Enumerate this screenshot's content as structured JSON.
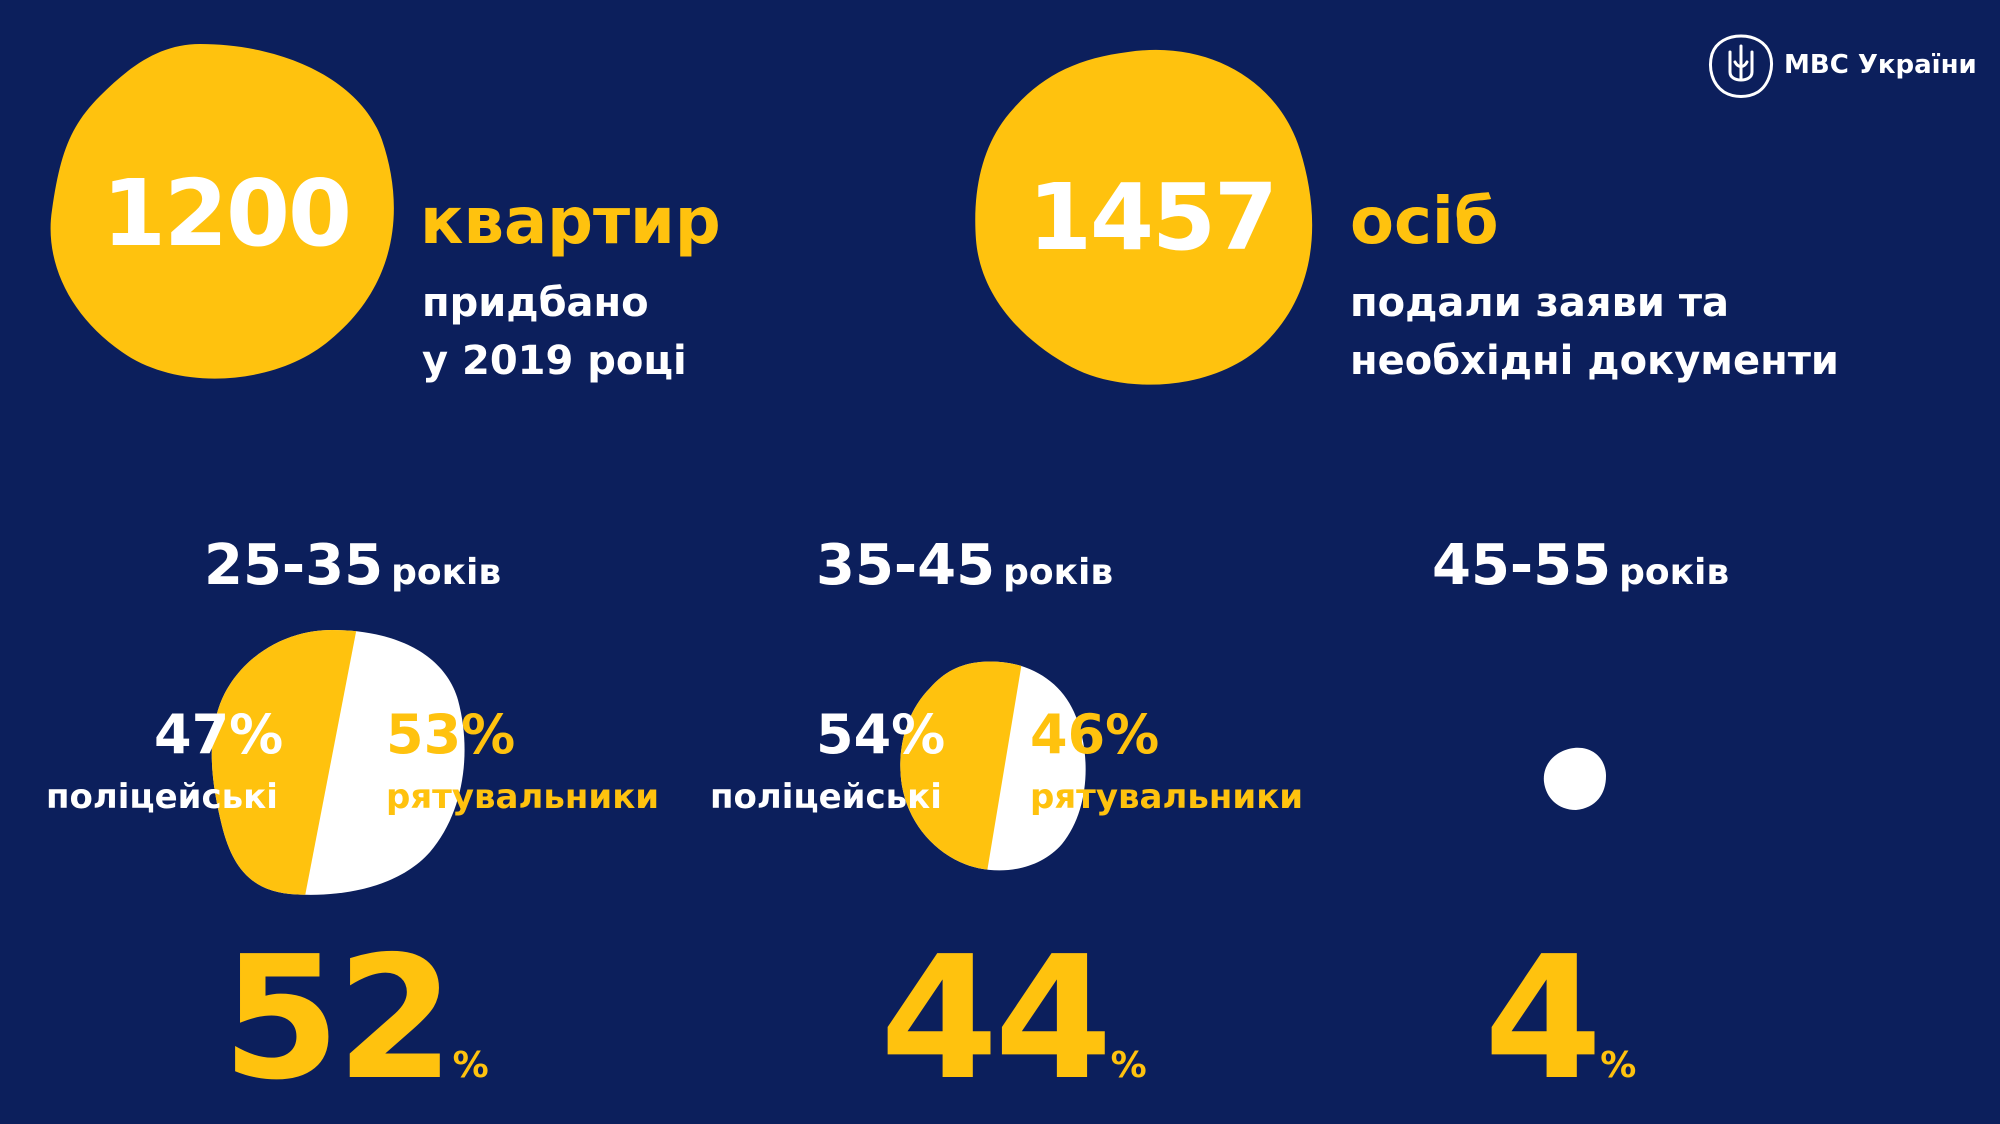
{
  "logo": {
    "text": "МВС України",
    "icon": "trident-emblem-icon"
  },
  "stats": [
    {
      "value": "1200",
      "unit": "квартир",
      "desc_lines": [
        "придбано",
        "у 2019 році"
      ]
    },
    {
      "value": "1457",
      "unit": "осіб",
      "desc_lines": [
        "подали заяви та",
        "необхідні документи"
      ]
    }
  ],
  "colors": {
    "background": "#0c1f5c",
    "accent": "#ffc20e",
    "light": "#ffffff"
  },
  "chart_data": [
    {
      "type": "pie",
      "title": "25-35 років",
      "group_range": "25-35",
      "group_unit": "років",
      "group_share": 52,
      "group_share_suffix": "%",
      "slices": [
        {
          "label": "поліцейські",
          "value": 47,
          "display": "47%"
        },
        {
          "label": "рятувальники",
          "value": 53,
          "display": "53%"
        }
      ]
    },
    {
      "type": "pie",
      "title": "35-45 років",
      "group_range": "35-45",
      "group_unit": "років",
      "group_share": 44,
      "group_share_suffix": "%",
      "slices": [
        {
          "label": "поліцейські",
          "value": 54,
          "display": "54%"
        },
        {
          "label": "рятувальники",
          "value": 46,
          "display": "46%"
        }
      ]
    },
    {
      "type": "pie",
      "title": "45-55 років",
      "group_range": "45-55",
      "group_unit": "років",
      "group_share": 4,
      "group_share_suffix": "%",
      "slices": []
    }
  ]
}
